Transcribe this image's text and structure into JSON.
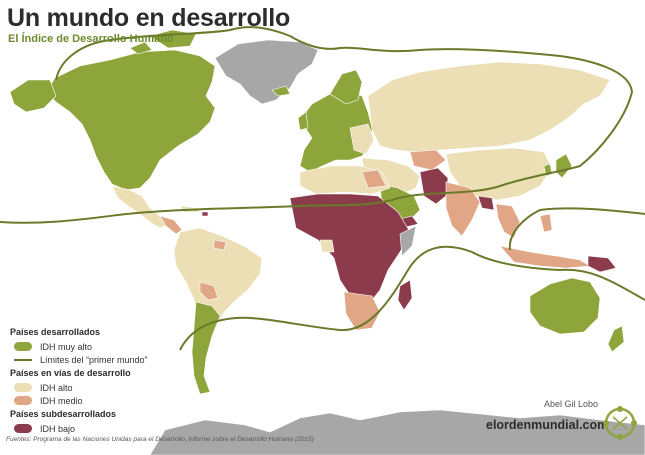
{
  "header": {
    "title": "Un mundo en desarrollo",
    "subtitle": "El Índice de Desarrollo Humano"
  },
  "colors": {
    "very_high": "#8ea53b",
    "high": "#ecdfb6",
    "medium": "#e0a685",
    "low": "#8c3b4c",
    "no_data": "#a7a7a7",
    "ocean": "#ffffff",
    "line": "#6b7a2a"
  },
  "legend": {
    "developed_heading": "Países desarrollados",
    "very_high_label": "IDH muy alto",
    "line_label": "Límites del “primer mundo”",
    "developing_heading": "Países en vías de desarrollo",
    "high_label": "IDH alto",
    "medium_label": "IDH medio",
    "underdeveloped_heading": "Países subdesarrollados",
    "low_label": "IDH bajo"
  },
  "footer": {
    "sources": "Fuentes: Programa de las Naciones Unidas para el Desarrollo, Informe sobre el Desarrollo Humano (2015)",
    "author": "Abel Gil Lobo",
    "site": "elordenmundial.com"
  }
}
